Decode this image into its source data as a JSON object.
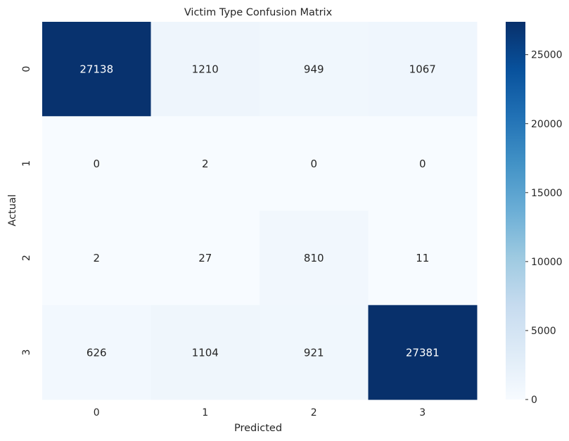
{
  "chart_data": {
    "type": "heatmap",
    "title": "Victim Type Confusion Matrix",
    "xlabel": "Predicted",
    "ylabel": "Actual",
    "x_categories": [
      "0",
      "1",
      "2",
      "3"
    ],
    "y_categories": [
      "0",
      "1",
      "2",
      "3"
    ],
    "values": [
      [
        27138,
        1210,
        949,
        1067
      ],
      [
        0,
        2,
        0,
        0
      ],
      [
        2,
        27,
        810,
        11
      ],
      [
        626,
        1104,
        921,
        27381
      ]
    ],
    "colorbar": {
      "min": 0,
      "max": 27381,
      "ticks": [
        0,
        5000,
        10000,
        15000,
        20000,
        25000
      ],
      "colormap": "Blues",
      "low_color": "#f7fbff",
      "high_color": "#08306b"
    },
    "annot_color_light": "#ffffff",
    "annot_color_dark": "#262626"
  }
}
